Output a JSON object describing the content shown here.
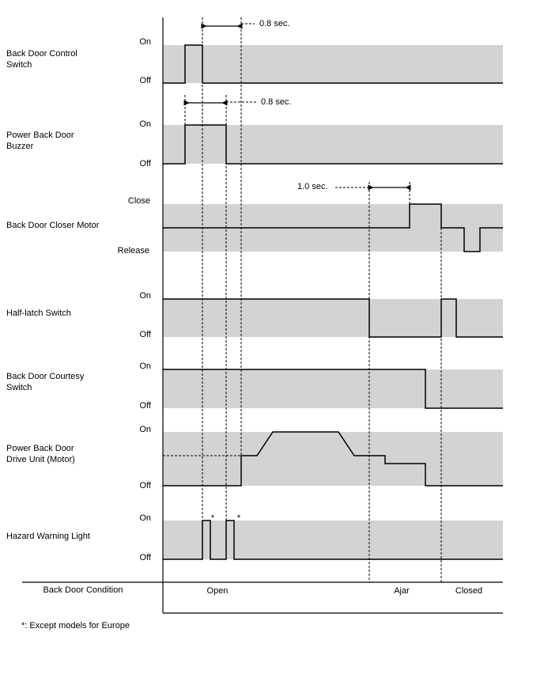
{
  "signals": [
    {
      "label": [
        "Back Door Control",
        "Switch"
      ],
      "levels": [
        "On",
        "Off"
      ]
    },
    {
      "label": [
        "Power Back Door",
        "Buzzer"
      ],
      "levels": [
        "On",
        "Off"
      ]
    },
    {
      "label": [
        "Back Door Closer Motor"
      ],
      "levels": [
        "Close",
        "Release"
      ]
    },
    {
      "label": [
        "Half-latch Switch"
      ],
      "levels": [
        "On",
        "Off"
      ]
    },
    {
      "label": [
        "Back Door Courtesy",
        "Switch"
      ],
      "levels": [
        "On",
        "Off"
      ]
    },
    {
      "label": [
        "Power Back Door",
        "Drive Unit (Motor)"
      ],
      "levels": [
        "On",
        "Off"
      ]
    },
    {
      "label": [
        "Hazard Warning Light"
      ],
      "levels": [
        "On",
        "Off"
      ]
    }
  ],
  "timings": [
    "0.8 sec.",
    "0.8 sec.",
    "1.0 sec."
  ],
  "asterisks": [
    "*",
    "*"
  ],
  "condition": {
    "label": "Back Door Condition",
    "states": [
      "Open",
      "Ajar",
      "Closed"
    ]
  },
  "footnote": "*: Except models for Europe"
}
